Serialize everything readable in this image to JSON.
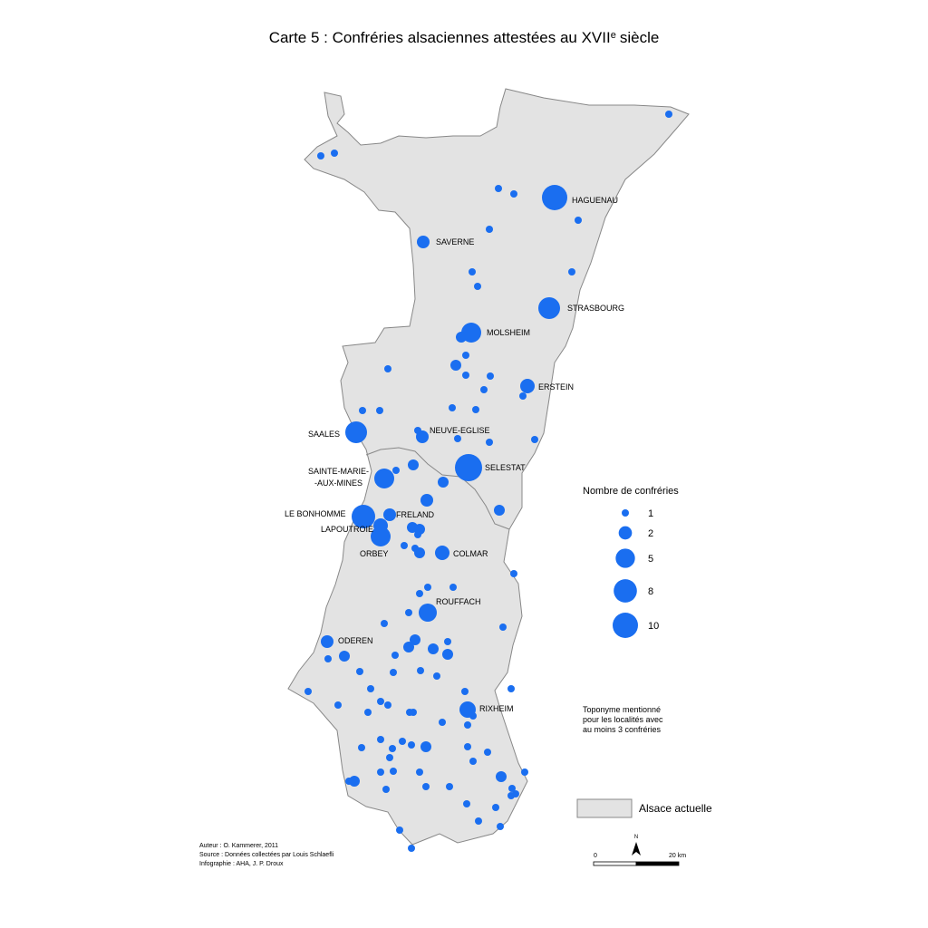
{
  "title": {
    "main": "Carte 5 : Confréries alsaciennes attestées au XVII",
    "superscript": "e",
    "end": "siècle"
  },
  "towns": [
    "HAGUENAU",
    "SAVERNE",
    "STRASBOURG",
    "MOLSHEIM",
    "ERSTEIN",
    "SAALES",
    "NEUVE-EGLISE",
    "SELESTAT",
    "SAINTE-MARIE-",
    "-AUX-MINES",
    "LE BONHOMME",
    "FRELAND",
    "LAPOUTROIE",
    "ORBEY",
    "COLMAR",
    "ROUFFACH",
    "ODEREN",
    "RIXHEIM"
  ],
  "legend": {
    "title": "Nombre de confréries",
    "values": [
      1,
      2,
      5,
      8,
      10
    ]
  },
  "note": [
    "Toponyme mentionné",
    "pour les localités avec",
    "au moins 3 confréries"
  ],
  "area_legend": "Alsace actuelle",
  "credits": [
    "Auteur : O. Kammerer, 2011",
    "Source : Données collectées par Louis Schlaefli",
    "Infographie : AHA, J. P. Droux"
  ],
  "scale": {
    "north": "N",
    "start": "0",
    "end": "20 km"
  }
}
